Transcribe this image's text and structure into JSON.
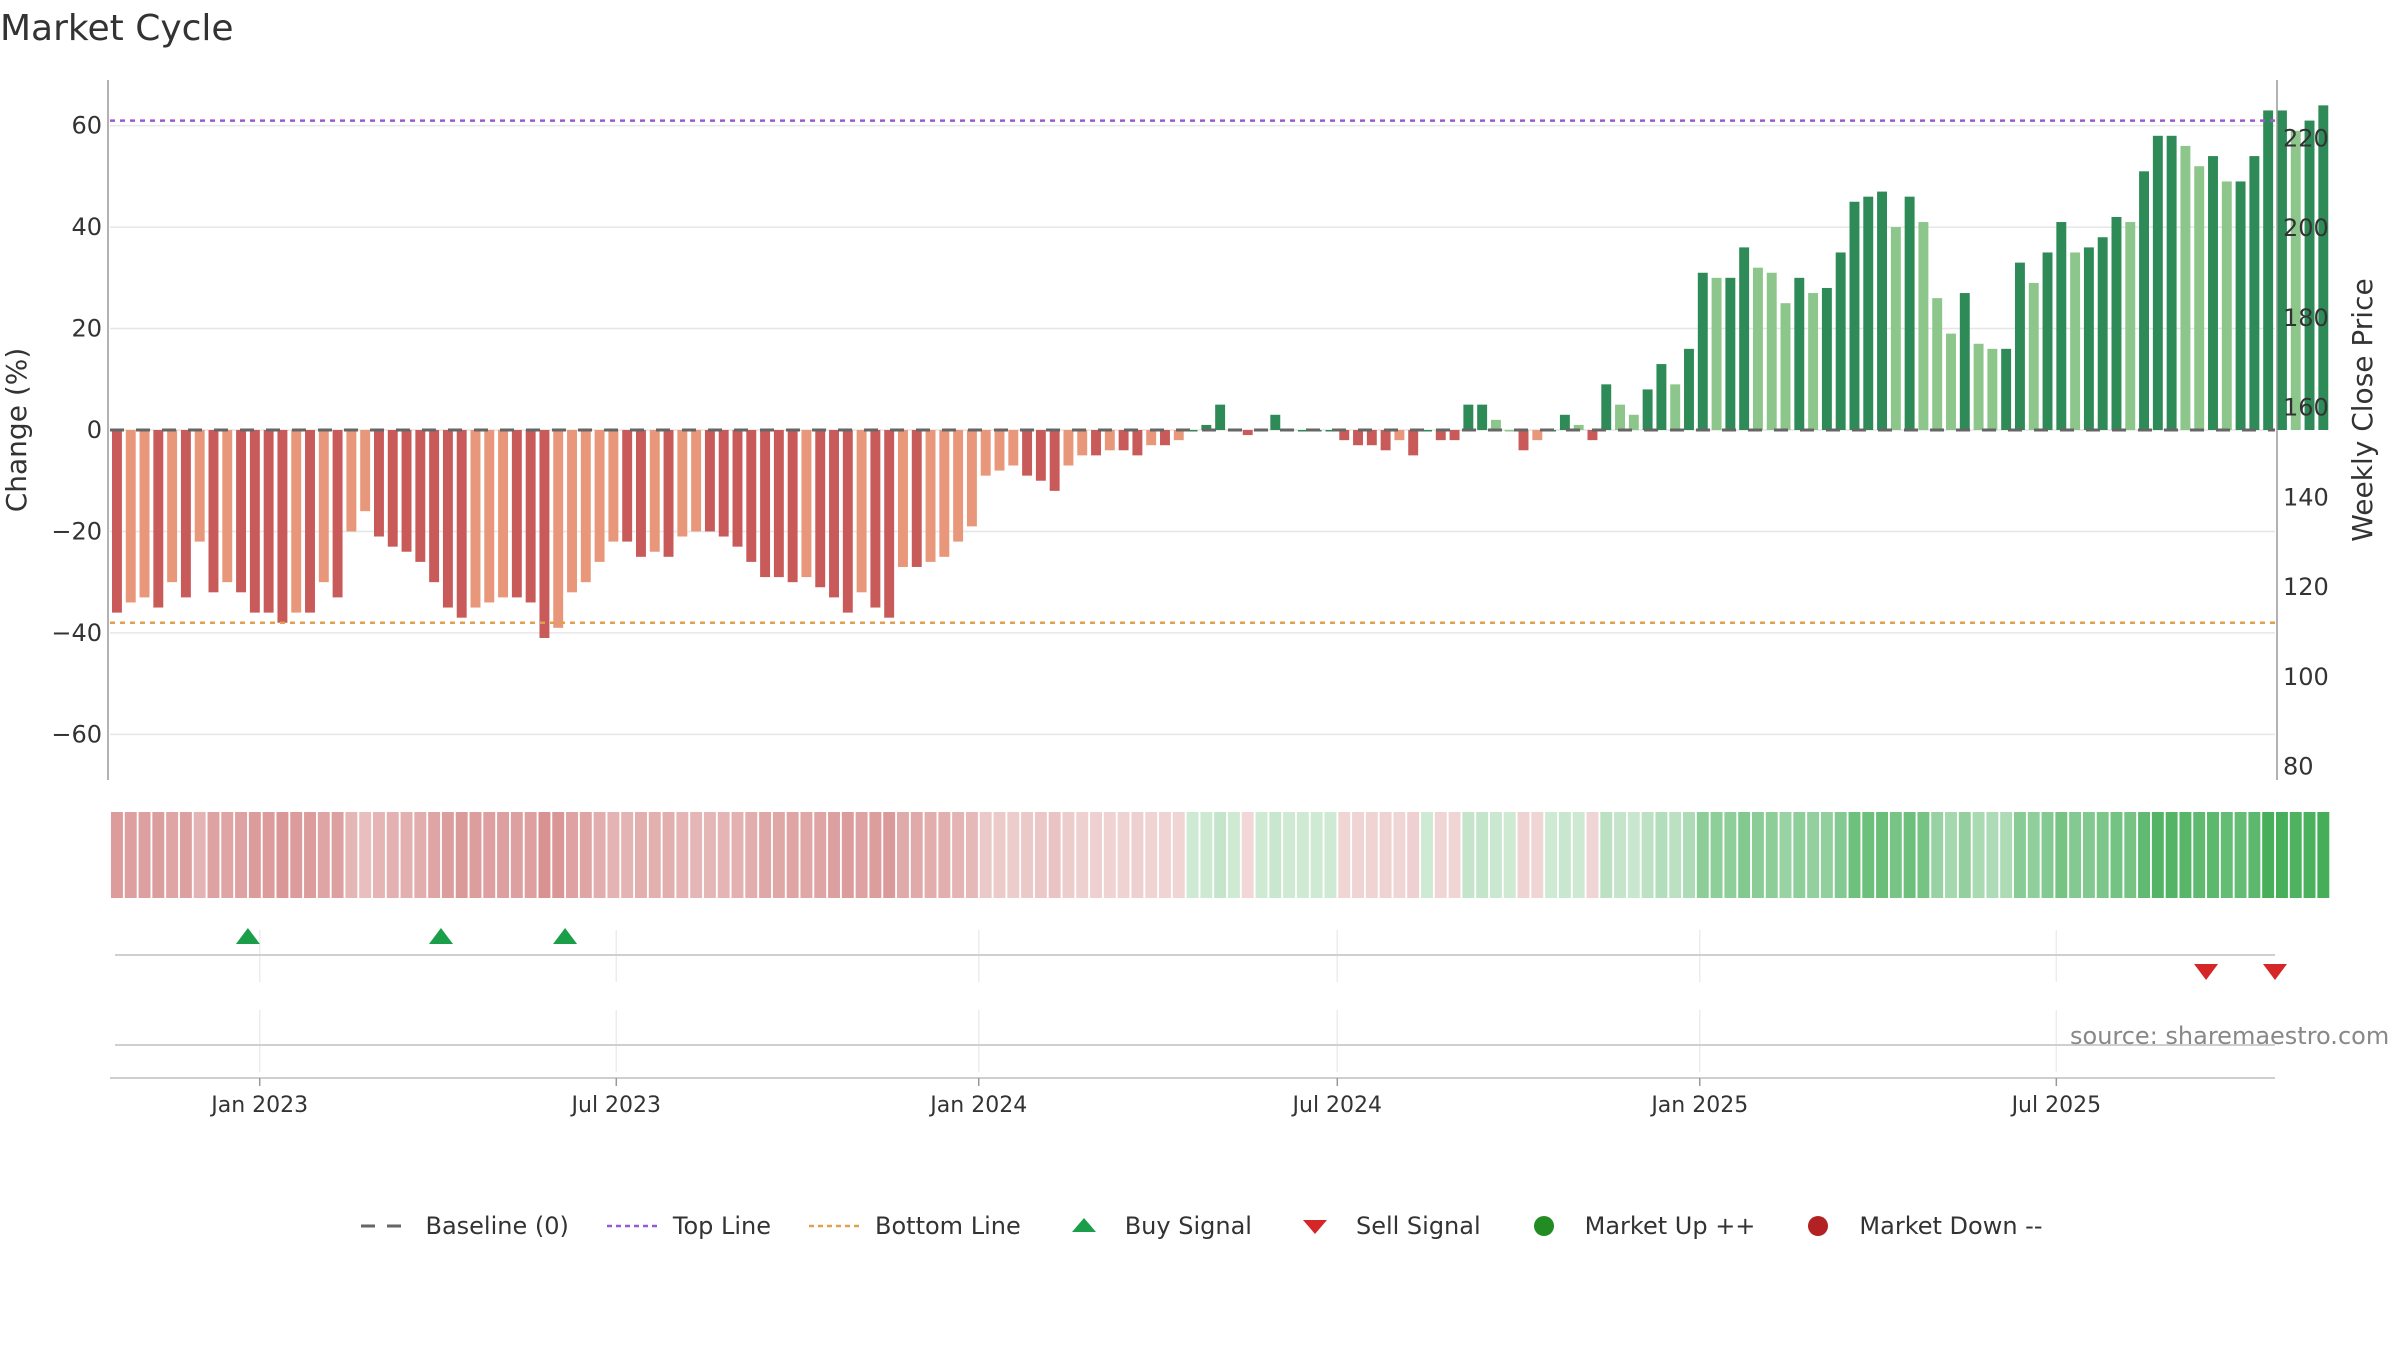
{
  "title": "Market Cycle",
  "source": "source: sharemaestro.com",
  "colors": {
    "bear_dark": "#c95a5a",
    "bear_light": "#e8977a",
    "bull_dark": "#2e8b57",
    "bull_light": "#8cc68a",
    "top_line": "#9b59d0",
    "bottom_line": "#e0a050",
    "buy": "#1a9e4a",
    "sell": "#d62728",
    "market_up": "#228b22",
    "market_down": "#b22222",
    "baseline": "#666666"
  },
  "legend": [
    {
      "key": "baseline",
      "label": "Baseline (0)"
    },
    {
      "key": "top",
      "label": "Top Line"
    },
    {
      "key": "bottom",
      "label": "Bottom Line"
    },
    {
      "key": "buy",
      "label": "Buy Signal"
    },
    {
      "key": "sell",
      "label": "Sell Signal"
    },
    {
      "key": "up",
      "label": "Market Up ++"
    },
    {
      "key": "down",
      "label": "Market Down --"
    }
  ],
  "chart_data": {
    "type": "bar",
    "ylabel": "Change (%)",
    "y2label": "Weekly Close Price",
    "ylim": [
      -69,
      69
    ],
    "yticks": [
      60,
      40,
      20,
      0,
      -20,
      -40,
      -60
    ],
    "y2ticks": [
      220,
      200,
      180,
      160,
      140,
      120,
      100,
      80
    ],
    "y2lim": [
      77,
      233
    ],
    "top_line": 61,
    "bottom_line": -38,
    "x_start": "2022-10-17",
    "x_end": "2025-10-20",
    "x_ticks": [
      {
        "date": "2023-01-01",
        "label": "Jan 2023"
      },
      {
        "date": "2023-07-01",
        "label": "Jul 2023"
      },
      {
        "date": "2024-01-01",
        "label": "Jan 2024"
      },
      {
        "date": "2024-07-01",
        "label": "Jul 2024"
      },
      {
        "date": "2025-01-01",
        "label": "Jan 2025"
      },
      {
        "date": "2025-07-01",
        "label": "Jul 2025"
      }
    ],
    "first_week": "2022-10-17",
    "values": [
      -36,
      -34,
      -33,
      -35,
      -30,
      -33,
      -22,
      -32,
      -30,
      -32,
      -36,
      -36,
      -38,
      -36,
      -36,
      -30,
      -33,
      -20,
      -16,
      -21,
      -23,
      -24,
      -26,
      -30,
      -35,
      -37,
      -35,
      -34,
      -33,
      -33,
      -34,
      -41,
      -39,
      -32,
      -30,
      -26,
      -22,
      -22,
      -25,
      -24,
      -25,
      -21,
      -20,
      -20,
      -21,
      -23,
      -26,
      -29,
      -29,
      -30,
      -29,
      -31,
      -33,
      -36,
      -32,
      -35,
      -37,
      -27,
      -27,
      -26,
      -25,
      -22,
      -19,
      -9,
      -8,
      -7,
      -9,
      -10,
      -12,
      -7,
      -5,
      -5,
      -4,
      -4,
      -5,
      -3,
      -3,
      -2,
      0,
      1,
      5,
      0,
      -1,
      0,
      3,
      0,
      0,
      0,
      0,
      -2,
      -3,
      -3,
      -4,
      -2,
      -5,
      0,
      -2,
      -2,
      5,
      5,
      2,
      0,
      -4,
      -2,
      0,
      3,
      1,
      -2,
      9,
      5,
      3,
      8,
      13,
      9,
      16,
      31,
      30,
      30,
      36,
      32,
      31,
      25,
      30,
      27,
      28,
      35,
      45,
      46,
      47,
      40,
      46,
      41,
      26,
      19,
      27,
      17,
      16,
      16,
      33,
      29,
      35,
      41,
      35,
      36,
      38,
      42,
      41,
      51,
      58,
      58,
      56,
      52,
      54,
      49,
      49,
      54,
      63,
      63,
      59,
      61,
      64
    ],
    "buy_signals": [
      "2022-12-26",
      "2023-04-03",
      "2023-06-05"
    ],
    "sell_signals": [
      "2025-09-15",
      "2025-10-20"
    ]
  }
}
